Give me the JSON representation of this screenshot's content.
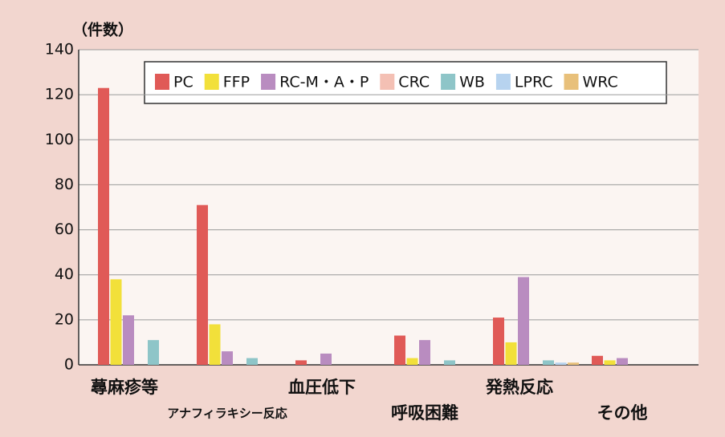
{
  "chart_data": {
    "type": "bar",
    "y_axis_label": "（件数）",
    "categories": [
      "蕁麻疹等",
      "アナフィラキシー反応",
      "血圧低下",
      "呼吸困難",
      "発熱反応",
      "その他"
    ],
    "series": [
      {
        "name": "PC",
        "color": "#e05a57",
        "values": [
          123,
          71,
          2,
          13,
          21,
          4
        ]
      },
      {
        "name": "FFP",
        "color": "#f2e03a",
        "values": [
          38,
          18,
          0,
          3,
          10,
          2
        ]
      },
      {
        "name": "RC-M・A・P",
        "color": "#b98cc0",
        "values": [
          22,
          6,
          5,
          11,
          39,
          3
        ]
      },
      {
        "name": "CRC",
        "color": "#f4c0b4",
        "values": [
          0,
          0,
          0,
          0,
          0,
          0
        ]
      },
      {
        "name": "WB",
        "color": "#8ec5c8",
        "values": [
          11,
          3,
          0,
          2,
          2,
          0
        ]
      },
      {
        "name": "LPRC",
        "color": "#b7d3ef",
        "values": [
          0,
          0,
          0,
          0,
          1,
          0
        ]
      },
      {
        "name": "WRC",
        "color": "#e8c07a",
        "values": [
          0,
          0,
          0,
          0,
          1,
          0
        ]
      }
    ],
    "ylim": [
      0,
      140
    ],
    "yticks": [
      0,
      20,
      40,
      60,
      80,
      100,
      120,
      140
    ],
    "grid": true
  }
}
